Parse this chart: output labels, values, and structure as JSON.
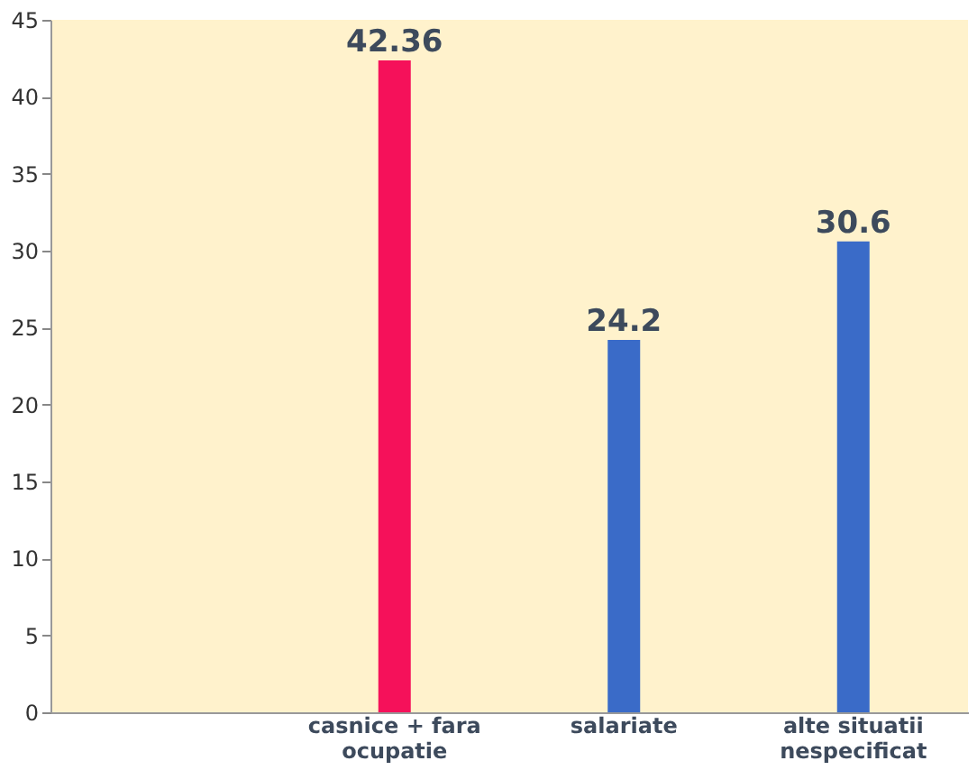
{
  "chart_data": {
    "type": "bar",
    "categories": [
      null,
      "casnice + fara ocupatie",
      "salariate",
      "alte situatii nespecificat"
    ],
    "values": [
      null,
      42.36,
      24.2,
      30.6
    ],
    "colors": [
      "#3a6bc8",
      "#f5115a",
      "#3a6bc8",
      "#3a6bc8"
    ],
    "ylim": [
      0,
      45
    ],
    "yticks": [
      0,
      5,
      10,
      15,
      20,
      25,
      30,
      35,
      40,
      45
    ],
    "grid": false,
    "data_labels": true
  }
}
